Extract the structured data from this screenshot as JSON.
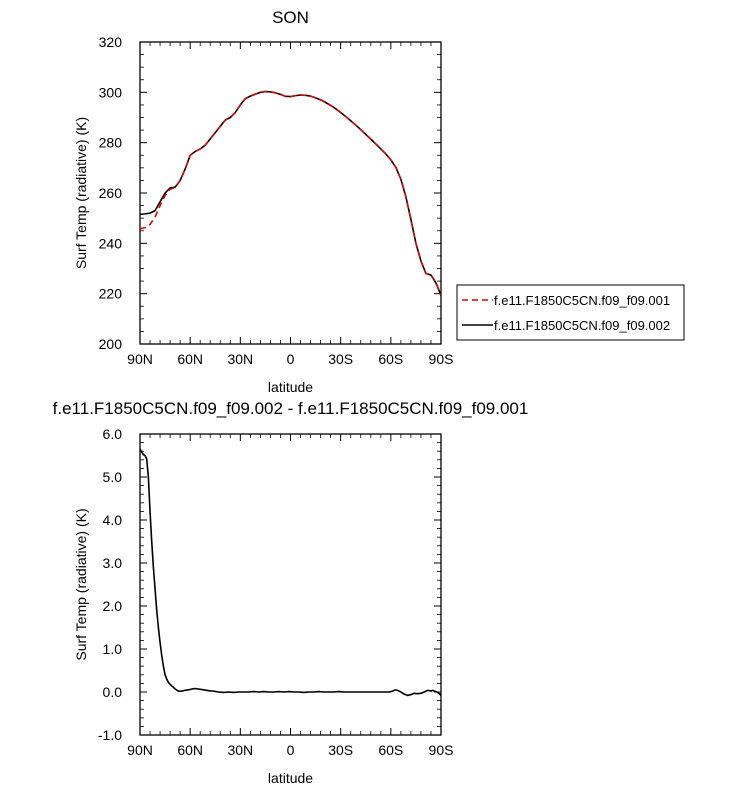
{
  "chart_data": [
    {
      "type": "line",
      "title": "SON",
      "xlabel": "latitude",
      "ylabel": "Surf Temp (radiative) (K)",
      "xlim": [
        90,
        -90
      ],
      "ylim": [
        200,
        320
      ],
      "x_ticks": [
        90,
        60,
        30,
        0,
        -30,
        -60,
        -90
      ],
      "x_tick_labels": [
        "90N",
        "60N",
        "30N",
        "0",
        "30S",
        "60S",
        "90S"
      ],
      "y_ticks": [
        200,
        220,
        240,
        260,
        280,
        300,
        320
      ],
      "y_tick_labels": [
        "200",
        "220",
        "240",
        "260",
        "280",
        "300",
        "320"
      ],
      "legend_position": "right",
      "grid": false,
      "series": [
        {
          "name": "f.e11.F1850C5CN.f09_f09.001",
          "color": "#e00000",
          "dash": "dashed",
          "x": [
            90,
            87,
            84,
            81,
            78,
            75,
            72,
            69,
            66,
            63,
            60,
            57,
            54,
            51,
            48,
            45,
            42,
            39,
            36,
            33,
            30,
            27,
            24,
            21,
            18,
            15,
            12,
            9,
            6,
            3,
            0,
            -3,
            -6,
            -9,
            -12,
            -15,
            -18,
            -21,
            -24,
            -27,
            -30,
            -33,
            -36,
            -39,
            -42,
            -45,
            -48,
            -51,
            -54,
            -57,
            -60,
            -63,
            -66,
            -69,
            -72,
            -75,
            -78,
            -81,
            -84,
            -87,
            -90
          ],
          "y": [
            245.8,
            246.2,
            247.5,
            250.5,
            255,
            259,
            261.5,
            262.2,
            265,
            269.5,
            275,
            276.5,
            277.5,
            279,
            281.5,
            284,
            286.5,
            289,
            290,
            292,
            295,
            297.5,
            298.5,
            299.3,
            300,
            300.3,
            300.2,
            299.8,
            299.2,
            298.4,
            298.3,
            298.7,
            298.9,
            298.8,
            298.5,
            297.8,
            297,
            296,
            294.8,
            293.5,
            292,
            290.4,
            288.7,
            287,
            285.2,
            283.3,
            281.4,
            279.5,
            277.5,
            275.5,
            273.2,
            270.2,
            265.5,
            258.5,
            249.5,
            240,
            233,
            228,
            227.5,
            224.5,
            219.5
          ]
        },
        {
          "name": "f.e11.F1850C5CN.f09_f09.002",
          "color": "#000000",
          "dash": "solid",
          "x": [
            90,
            87,
            84,
            81,
            78,
            75,
            72,
            69,
            66,
            63,
            60,
            57,
            54,
            51,
            48,
            45,
            42,
            39,
            36,
            33,
            30,
            27,
            24,
            21,
            18,
            15,
            12,
            9,
            6,
            3,
            0,
            -3,
            -6,
            -9,
            -12,
            -15,
            -18,
            -21,
            -24,
            -27,
            -30,
            -33,
            -36,
            -39,
            -42,
            -45,
            -48,
            -51,
            -54,
            -57,
            -60,
            -63,
            -66,
            -69,
            -72,
            -75,
            -78,
            -81,
            -84,
            -87,
            -90
          ],
          "y": [
            251.5,
            251.7,
            252,
            253,
            256.5,
            260,
            262,
            262.3,
            265,
            269.5,
            275,
            276.5,
            277.5,
            279,
            281.5,
            284,
            286.5,
            289,
            290,
            292,
            295,
            297.5,
            298.5,
            299.3,
            300,
            300.3,
            300.2,
            299.8,
            299.2,
            298.4,
            298.3,
            298.7,
            298.9,
            298.8,
            298.5,
            297.8,
            297,
            296,
            294.8,
            293.5,
            292,
            290.4,
            288.7,
            287,
            285.2,
            283.3,
            281.4,
            279.5,
            277.5,
            275.5,
            273.2,
            270.2,
            265.5,
            258.5,
            249.5,
            240,
            233,
            228,
            227.4,
            224.2,
            219.3
          ]
        }
      ]
    },
    {
      "type": "line",
      "title": "f.e11.F1850C5CN.f09_f09.002 - f.e11.F1850C5CN.f09_f09.001",
      "xlabel": "latitude",
      "ylabel": "Surf Temp (radiative) (K)",
      "xlim": [
        90,
        -90
      ],
      "ylim": [
        -1.0,
        6.0
      ],
      "x_ticks": [
        90,
        60,
        30,
        0,
        -30,
        -60,
        -90
      ],
      "x_tick_labels": [
        "90N",
        "60N",
        "30N",
        "0",
        "30S",
        "60S",
        "90S"
      ],
      "y_ticks": [
        -1,
        0,
        1,
        2,
        3,
        4,
        5,
        6
      ],
      "y_tick_labels": [
        "-1.0",
        "0.0",
        "1.0",
        "2.0",
        "3.0",
        "4.0",
        "5.0",
        "6.0"
      ],
      "grid": false,
      "series": [
        {
          "color": "#000000",
          "dash": "solid",
          "x": [
            90,
            89,
            88,
            87,
            86,
            85,
            84,
            83,
            82,
            81,
            80,
            79,
            78,
            77,
            76,
            75,
            74,
            73,
            72,
            71,
            70,
            69,
            67,
            65,
            63,
            61,
            59,
            57,
            55,
            52,
            49,
            46,
            43,
            40,
            37,
            34,
            31,
            28,
            25,
            22,
            19,
            16,
            13,
            10,
            7,
            4,
            1,
            -2,
            -5,
            -8,
            -11,
            -14,
            -17,
            -20,
            -23,
            -26,
            -29,
            -32,
            -35,
            -38,
            -41,
            -44,
            -47,
            -50,
            -53,
            -56,
            -59,
            -61,
            -62,
            -63,
            -64,
            -66,
            -68,
            -70,
            -72,
            -74,
            -76,
            -78,
            -80,
            -82,
            -84,
            -85,
            -86,
            -87,
            -88,
            -89,
            -90
          ],
          "y": [
            5.65,
            5.58,
            5.52,
            5.5,
            5.42,
            5.0,
            4.2,
            3.5,
            2.9,
            2.4,
            1.9,
            1.5,
            1.15,
            0.85,
            0.6,
            0.4,
            0.3,
            0.22,
            0.18,
            0.14,
            0.11,
            0.07,
            0.02,
            0.02,
            0.04,
            0.05,
            0.07,
            0.08,
            0.07,
            0.05,
            0.03,
            0.02,
            0.0,
            -0.01,
            0.0,
            -0.01,
            0.0,
            0.0,
            0.0,
            0.01,
            0.0,
            0.01,
            0.0,
            0.0,
            0.01,
            0.0,
            0.01,
            0.0,
            0.0,
            -0.01,
            0.0,
            0.0,
            0.01,
            0.0,
            0.0,
            0.0,
            0.01,
            0.0,
            0.0,
            0.0,
            0.0,
            0.0,
            0.0,
            0.0,
            0.0,
            0.0,
            0.0,
            0.02,
            0.04,
            0.05,
            0.04,
            0.0,
            -0.05,
            -0.08,
            -0.06,
            -0.03,
            -0.04,
            -0.03,
            0.0,
            0.04,
            0.02,
            0.04,
            0.02,
            0.01,
            -0.01,
            -0.04,
            -0.08
          ]
        }
      ]
    }
  ]
}
